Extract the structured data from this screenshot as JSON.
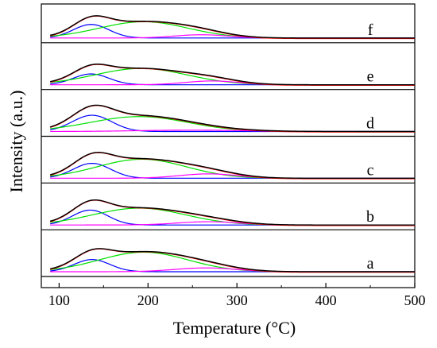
{
  "chart_data": {
    "type": "line",
    "title": "",
    "xlabel": "Temperature (°C)",
    "ylabel": "Intensity (a.u.)",
    "xlim": [
      80,
      500
    ],
    "x_ticks": [
      100,
      200,
      300,
      400,
      500
    ],
    "grid": false,
    "legend": "none",
    "panel_order_bottom_to_top": [
      "a",
      "b",
      "c",
      "d",
      "e",
      "f"
    ],
    "panels": [
      {
        "label": "a",
        "peaks": [
          {
            "component": "blue",
            "center": 137,
            "sigma": 20,
            "height": 0.45
          },
          {
            "component": "green",
            "center": 195,
            "sigma": 50,
            "height": 0.72
          },
          {
            "component": "magenta",
            "center": 265,
            "sigma": 35,
            "height": 0.14
          }
        ]
      },
      {
        "label": "b",
        "peaks": [
          {
            "component": "blue",
            "center": 135,
            "sigma": 20,
            "height": 0.55
          },
          {
            "component": "green",
            "center": 190,
            "sigma": 52,
            "height": 0.62
          },
          {
            "component": "magenta",
            "center": 268,
            "sigma": 35,
            "height": 0.12
          }
        ]
      },
      {
        "label": "c",
        "peaks": [
          {
            "component": "blue",
            "center": 137,
            "sigma": 21,
            "height": 0.55
          },
          {
            "component": "green",
            "center": 193,
            "sigma": 50,
            "height": 0.7
          },
          {
            "component": "magenta",
            "center": 268,
            "sigma": 33,
            "height": 0.16
          }
        ]
      },
      {
        "label": "d",
        "peaks": [
          {
            "component": "blue",
            "center": 137,
            "sigma": 22,
            "height": 0.6
          },
          {
            "component": "green",
            "center": 190,
            "sigma": 55,
            "height": 0.55
          },
          {
            "component": "magenta",
            "center": 250,
            "sigma": 60,
            "height": 0.05
          }
        ]
      },
      {
        "label": "e",
        "peaks": [
          {
            "component": "blue",
            "center": 136,
            "sigma": 20,
            "height": 0.4
          },
          {
            "component": "green",
            "center": 192,
            "sigma": 52,
            "height": 0.6
          },
          {
            "component": "magenta",
            "center": 272,
            "sigma": 30,
            "height": 0.14
          }
        ]
      },
      {
        "label": "f",
        "peaks": [
          {
            "component": "blue",
            "center": 136,
            "sigma": 20,
            "height": 0.5
          },
          {
            "component": "green",
            "center": 195,
            "sigma": 50,
            "height": 0.6
          },
          {
            "component": "magenta",
            "center": 260,
            "sigma": 30,
            "height": 0.12
          }
        ]
      }
    ]
  },
  "colors": {
    "component_1": "#0000ff",
    "component_2": "#00e000",
    "component_3": "#ff00ff",
    "envelope": "#000000",
    "experimental": "#ff0000"
  }
}
